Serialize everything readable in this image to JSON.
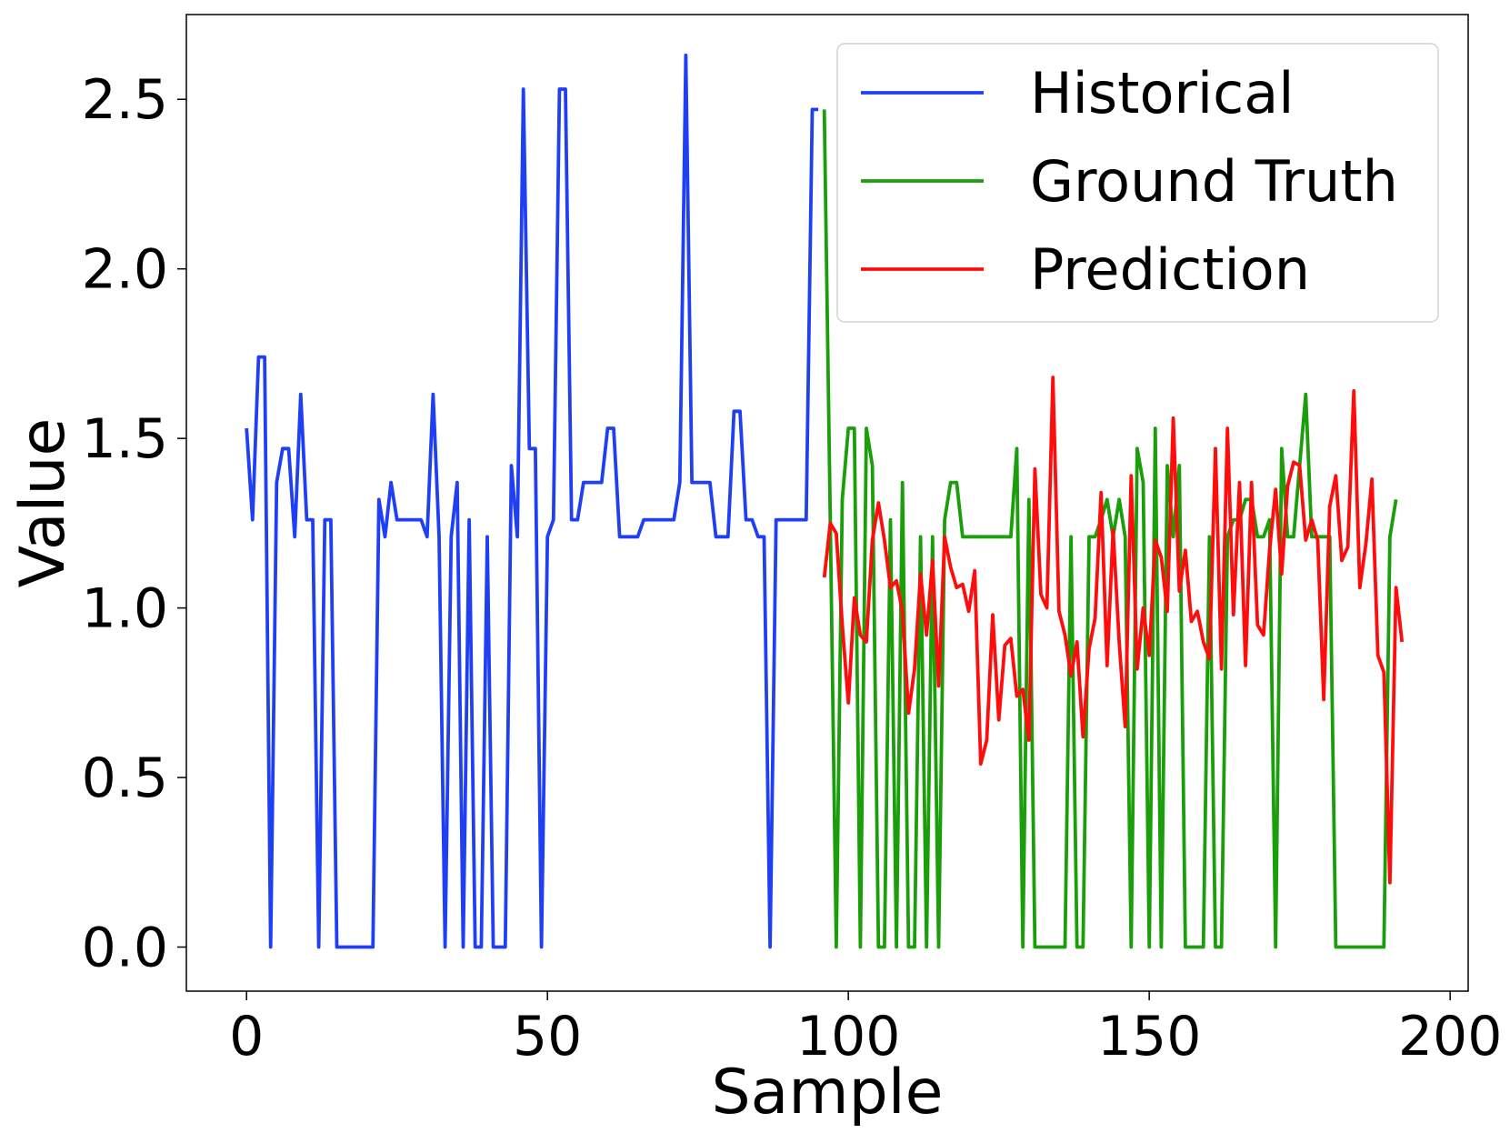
{
  "chart_data": {
    "type": "line",
    "xlabel": "Sample",
    "ylabel": "Value",
    "xlim": [
      -10,
      203
    ],
    "ylim": [
      -0.13,
      2.75
    ],
    "xticks": [
      0,
      50,
      100,
      150,
      200
    ],
    "xtick_labels": [
      "0",
      "50",
      "100",
      "150",
      "200"
    ],
    "yticks": [
      0.0,
      0.5,
      1.0,
      1.5,
      2.0,
      2.5
    ],
    "ytick_labels": [
      "0.0",
      "0.5",
      "1.0",
      "1.5",
      "2.0",
      "2.5"
    ],
    "legend_position": "top-right",
    "series": [
      {
        "name": "Historical",
        "color": "#1f3ff5",
        "x_start": 0,
        "values": [
          1.53,
          1.26,
          1.74,
          1.74,
          0,
          1.37,
          1.47,
          1.47,
          1.21,
          1.63,
          1.26,
          1.26,
          0,
          1.26,
          1.26,
          0,
          0,
          0,
          0,
          0,
          0,
          0,
          1.32,
          1.21,
          1.37,
          1.26,
          1.26,
          1.26,
          1.26,
          1.26,
          1.21,
          1.63,
          1.21,
          0,
          1.21,
          1.37,
          0,
          1.26,
          0,
          0,
          1.21,
          0,
          0,
          0,
          1.42,
          1.21,
          2.53,
          1.47,
          1.47,
          0,
          1.21,
          1.26,
          2.53,
          2.53,
          1.26,
          1.26,
          1.37,
          1.37,
          1.37,
          1.37,
          1.53,
          1.53,
          1.21,
          1.21,
          1.21,
          1.21,
          1.26,
          1.26,
          1.26,
          1.26,
          1.26,
          1.26,
          1.37,
          2.63,
          1.37,
          1.37,
          1.37,
          1.37,
          1.21,
          1.21,
          1.21,
          1.58,
          1.58,
          1.26,
          1.26,
          1.21,
          1.21,
          0,
          1.26,
          1.26,
          1.26,
          1.26,
          1.26,
          1.26,
          2.47,
          2.47
        ]
      },
      {
        "name": "Ground Truth",
        "color": "#1a9e0a",
        "x_start": 96,
        "values": [
          2.47,
          1.26,
          0,
          1.32,
          1.53,
          1.53,
          0,
          1.53,
          1.42,
          0,
          0,
          1.26,
          0,
          1.37,
          0,
          0,
          1.21,
          0,
          1.21,
          0,
          1.26,
          1.37,
          1.37,
          1.21,
          1.21,
          1.21,
          1.21,
          1.21,
          1.21,
          1.21,
          1.21,
          1.21,
          1.47,
          0,
          1.32,
          0,
          0,
          0,
          0,
          0,
          0,
          1.21,
          0,
          0,
          1.21,
          1.21,
          1.26,
          1.32,
          1.21,
          1.32,
          1.21,
          0,
          1.47,
          1.37,
          0,
          1.53,
          0,
          1.42,
          1.21,
          1.42,
          0,
          0,
          0,
          0,
          1.21,
          0,
          0,
          1.21,
          1.26,
          1.26,
          1.32,
          1.32,
          1.21,
          1.21,
          1.26,
          0,
          1.47,
          1.21,
          1.21,
          1.42,
          1.63,
          1.21,
          1.21,
          1.21,
          1.21,
          0,
          0,
          0,
          0,
          0,
          0,
          0,
          0,
          0,
          1.21,
          1.32
        ]
      },
      {
        "name": "Prediction",
        "color": "#ff0d0d",
        "x_start": 96,
        "values": [
          1.09,
          1.25,
          1.22,
          0.95,
          0.72,
          1.03,
          0.92,
          0.9,
          1.2,
          1.31,
          1.2,
          1.06,
          1.08,
          0.99,
          0.69,
          0.82,
          1.1,
          0.92,
          1.14,
          0.77,
          1.21,
          1.12,
          1.06,
          1.07,
          0.99,
          1.11,
          0.54,
          0.61,
          0.98,
          0.67,
          0.89,
          0.91,
          0.74,
          0.76,
          0.61,
          1.41,
          1.04,
          1.0,
          1.68,
          0.99,
          0.92,
          0.8,
          0.9,
          0.62,
          0.88,
          0.97,
          1.34,
          0.83,
          1.23,
          0.9,
          0.65,
          1.39,
          0.82,
          1.0,
          0.86,
          1.2,
          1.15,
          0.99,
          1.56,
          1.05,
          1.17,
          0.96,
          0.99,
          0.9,
          0.85,
          1.47,
          0.82,
          1.53,
          0.98,
          1.37,
          0.83,
          1.37,
          0.95,
          0.92,
          1.17,
          1.35,
          1.1,
          1.36,
          1.43,
          1.42,
          1.2,
          1.26,
          1.2,
          0.73,
          1.3,
          1.39,
          1.14,
          1.18,
          1.64,
          1.06,
          1.19,
          1.38,
          0.86,
          0.81,
          0.19,
          1.06,
          0.9
        ]
      }
    ]
  }
}
